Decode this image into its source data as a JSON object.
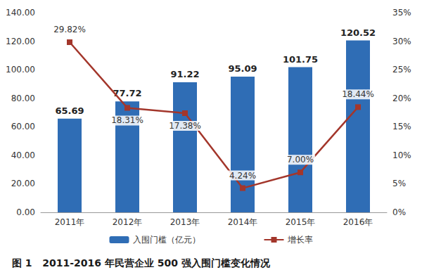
{
  "chart_data": {
    "type": "bar",
    "title": "图 1   2011-2016 年民营企业 500 强入围门槛变化情况",
    "categories": [
      "2011年",
      "2012年",
      "2013年",
      "2014年",
      "2015年",
      "2016年"
    ],
    "series": [
      {
        "name": "入围门槛（亿元）",
        "type": "bar",
        "color": "#2f6db5",
        "values": [
          65.69,
          77.72,
          91.22,
          95.09,
          101.75,
          120.52
        ]
      },
      {
        "name": "增长率",
        "type": "line",
        "axis": "y2",
        "color": "#a3362b",
        "marker": "square",
        "values": [
          29.82,
          18.31,
          17.38,
          4.24,
          7.0,
          18.44
        ],
        "value_labels": [
          "29.82%",
          "18.31%",
          "17.38%",
          "4.24%",
          "7.00%",
          "18.44%"
        ]
      }
    ],
    "ylim": [
      0,
      140
    ],
    "yticks": [
      {
        "value": 0,
        "label": "0.00"
      },
      {
        "value": 20,
        "label": "20.00"
      },
      {
        "value": 40,
        "label": "40.00"
      },
      {
        "value": 60,
        "label": "60.00"
      },
      {
        "value": 80,
        "label": "80.00"
      },
      {
        "value": 100,
        "label": "100.00"
      },
      {
        "value": 120,
        "label": "120.00"
      },
      {
        "value": 140,
        "label": "140.00"
      }
    ],
    "y2lim": [
      0,
      35
    ],
    "y2ticks": [
      {
        "value": 0,
        "label": "0%"
      },
      {
        "value": 5,
        "label": "5%"
      },
      {
        "value": 10,
        "label": "10%"
      },
      {
        "value": 15,
        "label": "15%"
      },
      {
        "value": 20,
        "label": "20%"
      },
      {
        "value": 25,
        "label": "25%"
      },
      {
        "value": 30,
        "label": "30%"
      },
      {
        "value": 35,
        "label": "35%"
      }
    ],
    "data_labels": true,
    "legend": "bottom",
    "grid": false
  }
}
